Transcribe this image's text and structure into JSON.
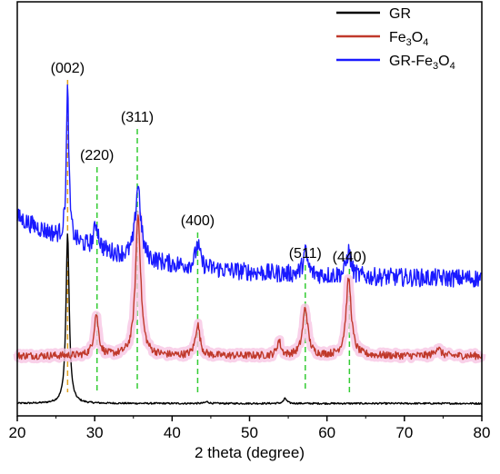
{
  "chart_data": {
    "type": "line",
    "title": "",
    "xlabel": "2 theta (degree)",
    "ylabel": "",
    "xlim": [
      20,
      80
    ],
    "ylim": [
      0,
      10
    ],
    "x_ticks": [
      "20",
      "30",
      "40",
      "50",
      "60",
      "70",
      "80"
    ],
    "grid": false,
    "legend_position": "top-right",
    "series": [
      {
        "name": "GR",
        "legend_parts": [
          "GR"
        ],
        "color": "#000000",
        "baseline": 0.3,
        "noise": 0.02,
        "trend": 0,
        "peaks": [
          [
            26.5,
            4.1,
            0.25
          ],
          [
            44.5,
            0.04,
            0.3
          ],
          [
            54.6,
            0.12,
            0.25
          ]
        ]
      },
      {
        "name": "Fe3O4",
        "legend_parts": [
          "Fe",
          "3",
          "O",
          "4"
        ],
        "color": "#c0392b",
        "baseline": 1.45,
        "noise": 0.09,
        "trend": 0,
        "peaks": [
          [
            30.2,
            1.0,
            0.35
          ],
          [
            35.6,
            3.4,
            0.4
          ],
          [
            43.3,
            0.75,
            0.35
          ],
          [
            53.8,
            0.35,
            0.3
          ],
          [
            57.2,
            1.15,
            0.4
          ],
          [
            62.8,
            1.85,
            0.4
          ],
          [
            74.3,
            0.2,
            0.4
          ]
        ]
      },
      {
        "name": "GR-Fe3O4",
        "legend_parts": [
          "GR-Fe",
          "3",
          "O",
          "4"
        ],
        "color": "#1a1aff",
        "baseline": 3.3,
        "noise": 0.22,
        "trend": 1.5,
        "peaks": [
          [
            26.5,
            3.6,
            0.2
          ],
          [
            30.2,
            0.6,
            0.35
          ],
          [
            35.6,
            1.8,
            0.4
          ],
          [
            43.3,
            0.55,
            0.35
          ],
          [
            57.2,
            0.55,
            0.35
          ],
          [
            62.8,
            0.6,
            0.35
          ]
        ]
      }
    ],
    "reference_lines": [
      {
        "x": 26.5,
        "label": "(002)",
        "color": "#e0a020"
      },
      {
        "x": 30.3,
        "label": "(220)",
        "color": "#33cc33"
      },
      {
        "x": 35.5,
        "label": "(311)",
        "color": "#33cc33"
      },
      {
        "x": 43.3,
        "label": "(400)",
        "color": "#33cc33"
      },
      {
        "x": 57.2,
        "label": "(511)",
        "color": "#33cc33"
      },
      {
        "x": 62.9,
        "label": "(440)",
        "color": "#33cc33"
      }
    ]
  }
}
